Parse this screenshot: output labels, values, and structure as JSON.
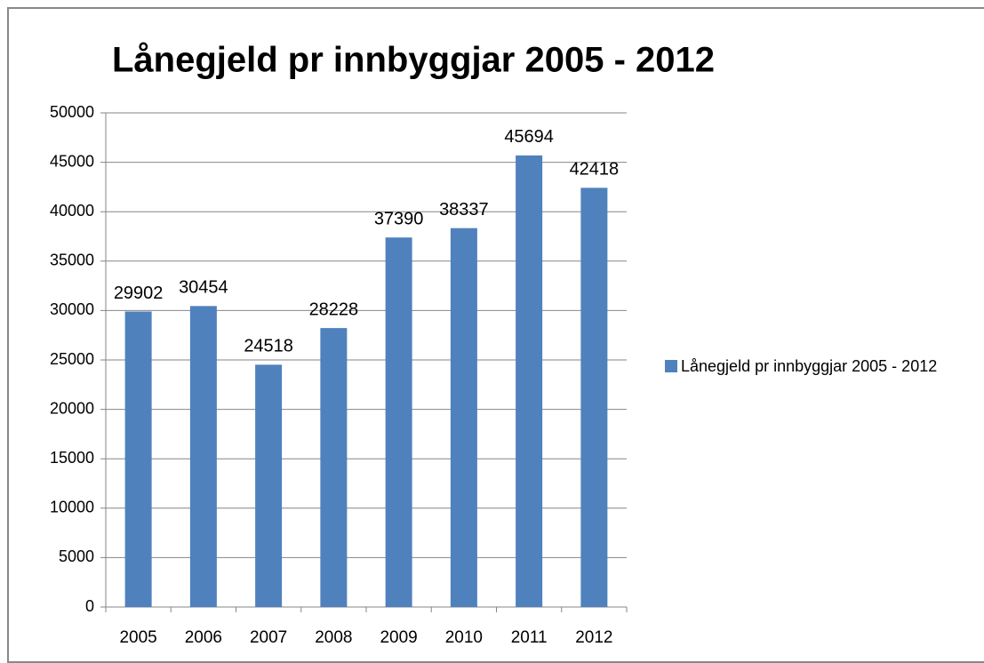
{
  "chart_data": {
    "type": "bar",
    "title": "Lånegjeld pr innbyggjar 2005 - 2012",
    "categories": [
      "2005",
      "2006",
      "2007",
      "2008",
      "2009",
      "2010",
      "2011",
      "2012"
    ],
    "series": [
      {
        "name": "Lånegjeld pr innbyggjar 2005 - 2012",
        "color": "#4f81bd",
        "values": [
          29902,
          30454,
          24518,
          28228,
          37390,
          38337,
          45694,
          42418
        ]
      }
    ],
    "ylim": [
      0,
      50000
    ],
    "yticks": [
      0,
      5000,
      10000,
      15000,
      20000,
      25000,
      30000,
      35000,
      40000,
      45000,
      50000
    ],
    "grid": true,
    "legend": "right",
    "data_labels": true
  }
}
